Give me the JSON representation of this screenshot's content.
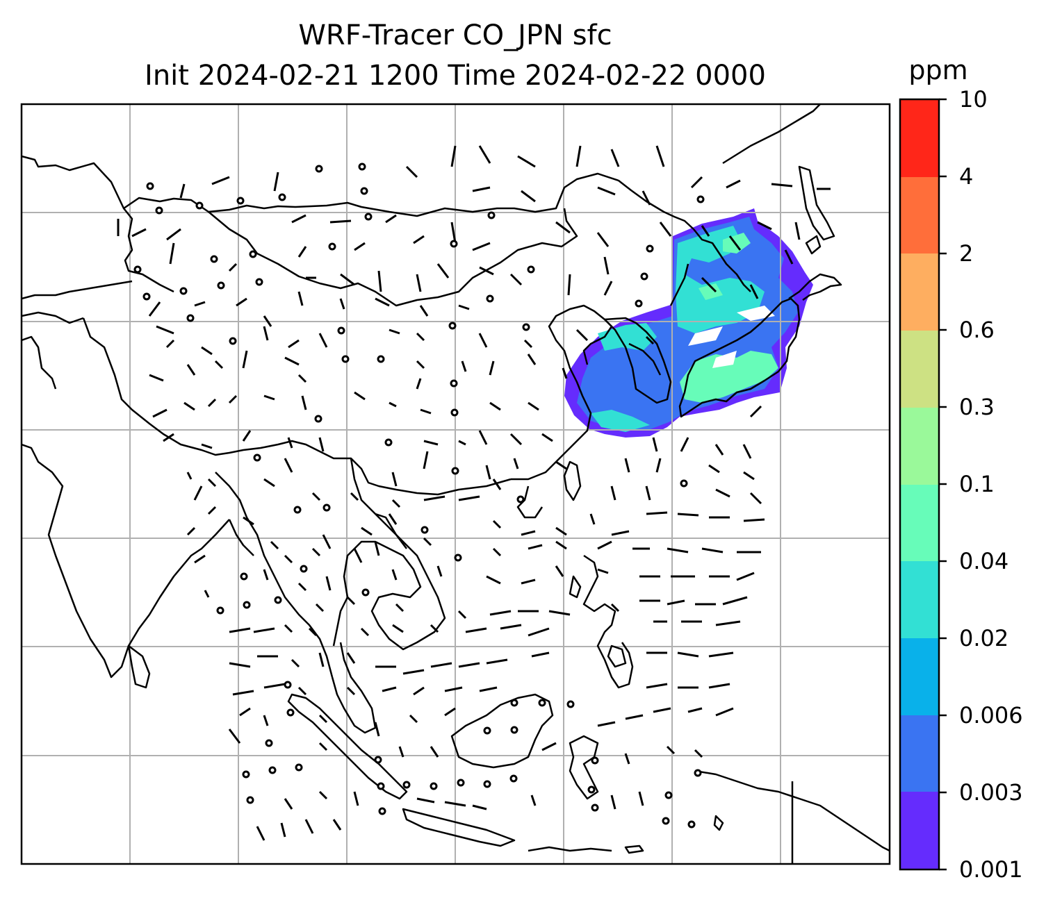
{
  "title": {
    "line1": "WRF-Tracer CO_JPN sfc",
    "line2": "Init 2024-02-21 1200 Time 2024-02-22 0000"
  },
  "colorbar": {
    "unit": "ppm",
    "ticks": [
      "0.001",
      "0.003",
      "0.006",
      "0.02",
      "0.04",
      "0.1",
      "0.3",
      "0.6",
      "2",
      "4",
      "10"
    ],
    "colors": [
      "#652cfd",
      "#3a74f2",
      "#09b1ea",
      "#32e0d4",
      "#67fcb9",
      "#9af99a",
      "#cde183",
      "#feae60",
      "#ff6e3a",
      "#ff2619"
    ]
  },
  "map": {
    "gridlines": true,
    "features": [
      "coastlines",
      "country-borders",
      "wind-barbs",
      "calm-wind-circles",
      "tracer-plume"
    ]
  }
}
